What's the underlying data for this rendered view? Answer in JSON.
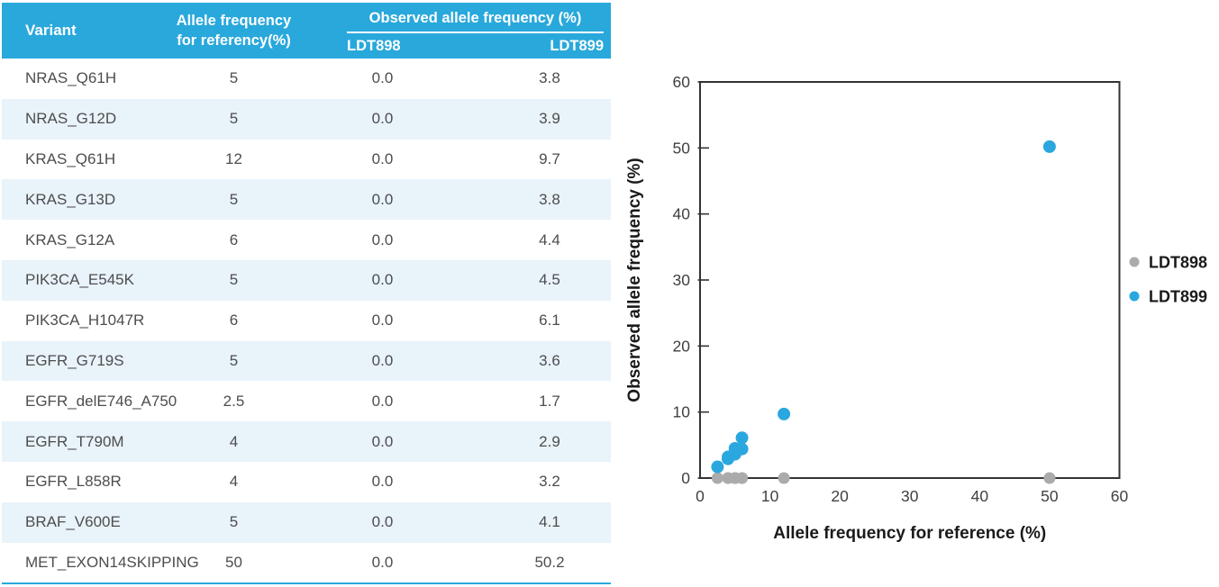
{
  "table": {
    "header": {
      "variant": "Variant",
      "ref_line1": "Allele frequency",
      "ref_line2": "for referency(%)",
      "observed_group": "Observed allele frequency (%)",
      "sub_ldt898": "LDT898",
      "sub_ldt899": "LDT899"
    },
    "rows": [
      [
        "NRAS_Q61H",
        "5",
        "0.0",
        "3.8"
      ],
      [
        "NRAS_G12D",
        "5",
        "0.0",
        "3.9"
      ],
      [
        "KRAS_Q61H",
        "12",
        "0.0",
        "9.7"
      ],
      [
        "KRAS_G13D",
        "5",
        "0.0",
        "3.8"
      ],
      [
        "KRAS_G12A",
        "6",
        "0.0",
        "4.4"
      ],
      [
        "PIK3CA_E545K",
        "5",
        "0.0",
        "4.5"
      ],
      [
        "PIK3CA_H1047R",
        "6",
        "0.0",
        "6.1"
      ],
      [
        "EGFR_G719S",
        "5",
        "0.0",
        "3.6"
      ],
      [
        "EGFR_delE746_A750",
        "2.5",
        "0.0",
        "1.7"
      ],
      [
        "EGFR_T790M",
        "4",
        "0.0",
        "2.9"
      ],
      [
        "EGFR_L858R",
        "4",
        "0.0",
        "3.2"
      ],
      [
        "BRAF_V600E",
        "5",
        "0.0",
        "4.1"
      ],
      [
        "MET_EXON14SKIPPING",
        "50",
        "0.0",
        "50.2"
      ]
    ]
  },
  "chart_data": {
    "type": "scatter",
    "xlabel": "Allele frequency for reference (%)",
    "ylabel": "Observed allele frequency (%)",
    "xlim": [
      0,
      60
    ],
    "ylim": [
      0,
      60
    ],
    "xticks": [
      0,
      10,
      20,
      30,
      40,
      50,
      60
    ],
    "yticks": [
      0,
      10,
      20,
      30,
      40,
      50,
      60
    ],
    "grid": false,
    "legend_position": "right",
    "series": [
      {
        "name": "LDT898",
        "color": "#ABABAB",
        "marker_radius": 6.5,
        "points": [
          [
            5,
            0
          ],
          [
            5,
            0
          ],
          [
            12,
            0
          ],
          [
            5,
            0
          ],
          [
            6,
            0
          ],
          [
            5,
            0
          ],
          [
            6,
            0
          ],
          [
            5,
            0
          ],
          [
            2.5,
            0
          ],
          [
            4,
            0
          ],
          [
            4,
            0
          ],
          [
            5,
            0
          ],
          [
            50,
            0
          ]
        ]
      },
      {
        "name": "LDT899",
        "color": "#2BA7DF",
        "marker_radius": 7,
        "points": [
          [
            5,
            3.8
          ],
          [
            5,
            3.9
          ],
          [
            12,
            9.7
          ],
          [
            5,
            3.8
          ],
          [
            6,
            4.4
          ],
          [
            5,
            4.5
          ],
          [
            6,
            6.1
          ],
          [
            5,
            3.6
          ],
          [
            2.5,
            1.7
          ],
          [
            4,
            2.9
          ],
          [
            4,
            3.2
          ],
          [
            5,
            4.1
          ],
          [
            50,
            50.2
          ]
        ]
      }
    ]
  },
  "colors": {
    "header_bg": "#29A8DC",
    "row_alt_bg": "#E9F3FA",
    "table_text": "#4D4D4D",
    "header_text": "#FFFFFF",
    "table_bottom_border": "#29A8DC",
    "axis": "#333333",
    "tick_label": "#404040",
    "axis_title": "#1A1A1A",
    "legend_text": "#1A1A1A"
  }
}
